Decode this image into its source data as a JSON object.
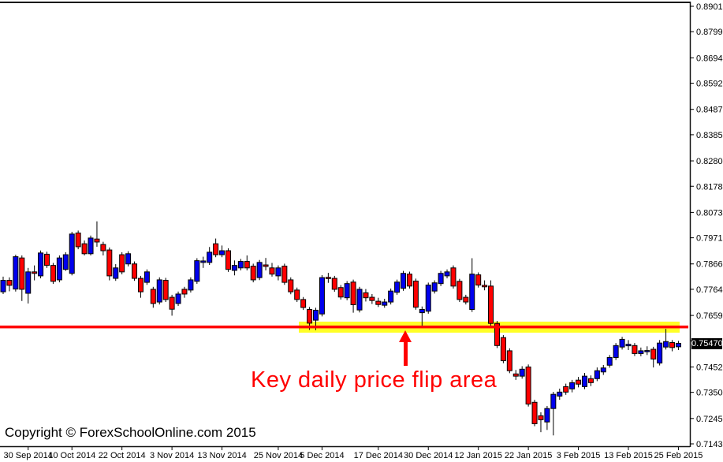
{
  "window": {
    "background": "#FFFFFF"
  },
  "copyright": "Copyright © ForexSchoolOnline.com 2015",
  "annotation": {
    "text": "Key daily price flip area",
    "color": "#FF0000"
  },
  "price_label": {
    "value": "0.75470",
    "bg": "#000000",
    "text_color": "#FFFFFF"
  },
  "key_level": {
    "price": 0.7612,
    "line_color": "#FF0000",
    "highlight_color": "#FFFF00",
    "label": "Key daily price flip area"
  },
  "chart_data": {
    "type": "candlestick",
    "timeframe": "daily",
    "ylim": [
      0.713,
      0.8917
    ],
    "y_ticks": [
      "0.89010",
      "0.87990",
      "0.86940",
      "0.85920",
      "0.84870",
      "0.83850",
      "0.82800",
      "0.81780",
      "0.80730",
      "0.79710",
      "0.78660",
      "0.77640",
      "0.76590",
      "0.75570",
      "0.74520",
      "0.73500",
      "0.72450",
      "0.71430"
    ],
    "x_ticks": [
      {
        "label": "30 Sep 2014",
        "i": 4
      },
      {
        "label": "10 Oct 2014",
        "i": 11
      },
      {
        "label": "22 Oct 2014",
        "i": 19
      },
      {
        "label": "3 Nov 2014",
        "i": 27
      },
      {
        "label": "13 Nov 2014",
        "i": 35
      },
      {
        "label": "25 Nov 2014",
        "i": 44
      },
      {
        "label": "5 Dec 2014",
        "i": 51
      },
      {
        "label": "17 Dec 2014",
        "i": 60
      },
      {
        "label": "30 Dec 2014",
        "i": 68
      },
      {
        "label": "12 Jan 2015",
        "i": 76
      },
      {
        "label": "22 Jan 2015",
        "i": 84
      },
      {
        "label": "3 Feb 2015",
        "i": 92
      },
      {
        "label": "13 Feb 2015",
        "i": 100
      },
      {
        "label": "25 Feb 2015",
        "i": 108
      }
    ],
    "bull_color": "#0000EE",
    "bear_color": "#FF0000",
    "wick_color": "#000000",
    "last_price": 0.7547,
    "candles": [
      [
        0.7754,
        0.7815,
        0.7745,
        0.78
      ],
      [
        0.78,
        0.7812,
        0.7756,
        0.778
      ],
      [
        0.7765,
        0.7903,
        0.7755,
        0.7895
      ],
      [
        0.789,
        0.79,
        0.7717,
        0.7764
      ],
      [
        0.7748,
        0.785,
        0.7707,
        0.7834
      ],
      [
        0.7834,
        0.786,
        0.78,
        0.7828
      ],
      [
        0.7818,
        0.792,
        0.7808,
        0.791
      ],
      [
        0.7905,
        0.7915,
        0.785,
        0.786
      ],
      [
        0.786,
        0.787,
        0.7786,
        0.7796
      ],
      [
        0.7802,
        0.79,
        0.7792,
        0.789
      ],
      [
        0.7844,
        0.7913,
        0.7838,
        0.7903
      ],
      [
        0.7828,
        0.7995,
        0.782,
        0.7986
      ],
      [
        0.799,
        0.8,
        0.7925,
        0.7935
      ],
      [
        0.7947,
        0.796,
        0.79,
        0.7907
      ],
      [
        0.7907,
        0.798,
        0.79,
        0.797
      ],
      [
        0.7966,
        0.8037,
        0.7935,
        0.7954
      ],
      [
        0.7944,
        0.7955,
        0.79,
        0.7919
      ],
      [
        0.7922,
        0.7932,
        0.78,
        0.7818
      ],
      [
        0.7808,
        0.7865,
        0.7798,
        0.785
      ],
      [
        0.7903,
        0.7913,
        0.7824,
        0.7834
      ],
      [
        0.7866,
        0.7917,
        0.7856,
        0.7907
      ],
      [
        0.7866,
        0.7876,
        0.7798,
        0.7808
      ],
      [
        0.7808,
        0.7818,
        0.773,
        0.7754
      ],
      [
        0.7792,
        0.7844,
        0.7782,
        0.7834
      ],
      [
        0.7764,
        0.7774,
        0.769,
        0.7707
      ],
      [
        0.7713,
        0.7812,
        0.7703,
        0.7802
      ],
      [
        0.78,
        0.781,
        0.7713,
        0.7723
      ],
      [
        0.7732,
        0.7742,
        0.7658,
        0.7684
      ],
      [
        0.7707,
        0.7755,
        0.7697,
        0.7745
      ],
      [
        0.7764,
        0.7774,
        0.773,
        0.7745
      ],
      [
        0.7761,
        0.7812,
        0.7751,
        0.7802
      ],
      [
        0.7796,
        0.7889,
        0.7786,
        0.7879
      ],
      [
        0.7872,
        0.7895,
        0.785,
        0.7878
      ],
      [
        0.7872,
        0.7934,
        0.7862,
        0.7913
      ],
      [
        0.7947,
        0.7968,
        0.7893,
        0.7903
      ],
      [
        0.7903,
        0.794,
        0.7893,
        0.7919
      ],
      [
        0.7919,
        0.7929,
        0.7834,
        0.7844
      ],
      [
        0.784,
        0.788,
        0.782,
        0.786
      ],
      [
        0.785,
        0.7886,
        0.784,
        0.7876
      ],
      [
        0.7876,
        0.79,
        0.784,
        0.785
      ],
      [
        0.7857,
        0.7867,
        0.7792,
        0.7802
      ],
      [
        0.7811,
        0.7882,
        0.7801,
        0.7872
      ],
      [
        0.7862,
        0.789,
        0.784,
        0.7856
      ],
      [
        0.785,
        0.787,
        0.7815,
        0.7825
      ],
      [
        0.7818,
        0.786,
        0.78,
        0.785
      ],
      [
        0.7857,
        0.7867,
        0.7782,
        0.7792
      ],
      [
        0.7802,
        0.7812,
        0.7744,
        0.7754
      ],
      [
        0.7761,
        0.7771,
        0.7713,
        0.7723
      ],
      [
        0.7723,
        0.7733,
        0.7681,
        0.7691
      ],
      [
        0.7683,
        0.7693,
        0.7601,
        0.7628
      ],
      [
        0.764,
        0.769,
        0.76,
        0.768
      ],
      [
        0.7665,
        0.7821,
        0.7655,
        0.7811
      ],
      [
        0.7812,
        0.783,
        0.779,
        0.7808
      ],
      [
        0.7808,
        0.7818,
        0.7754,
        0.7764
      ],
      [
        0.7771,
        0.7781,
        0.7723,
        0.7733
      ],
      [
        0.773,
        0.7797,
        0.772,
        0.7787
      ],
      [
        0.7793,
        0.7803,
        0.767,
        0.7702
      ],
      [
        0.7681,
        0.7774,
        0.7671,
        0.7764
      ],
      [
        0.775,
        0.7765,
        0.7715,
        0.773
      ],
      [
        0.7732,
        0.7745,
        0.7705,
        0.7719
      ],
      [
        0.7716,
        0.773,
        0.7693,
        0.7703
      ],
      [
        0.77,
        0.7726,
        0.769,
        0.7713
      ],
      [
        0.7713,
        0.7767,
        0.7703,
        0.7757
      ],
      [
        0.7752,
        0.7803,
        0.7742,
        0.7793
      ],
      [
        0.7768,
        0.7838,
        0.7758,
        0.7828
      ],
      [
        0.7825,
        0.7835,
        0.7767,
        0.7777
      ],
      [
        0.7797,
        0.7807,
        0.7682,
        0.7692
      ],
      [
        0.767,
        0.7695,
        0.7613,
        0.7683
      ],
      [
        0.7676,
        0.7791,
        0.7666,
        0.7781
      ],
      [
        0.7757,
        0.78,
        0.7747,
        0.779
      ],
      [
        0.7787,
        0.7838,
        0.7777,
        0.7828
      ],
      [
        0.7818,
        0.7844,
        0.7808,
        0.7834
      ],
      [
        0.785,
        0.786,
        0.7767,
        0.7777
      ],
      [
        0.7796,
        0.7806,
        0.7713,
        0.7723
      ],
      [
        0.7732,
        0.7742,
        0.7703,
        0.7713
      ],
      [
        0.7683,
        0.7889,
        0.7673,
        0.7825
      ],
      [
        0.7822,
        0.7832,
        0.7771,
        0.7781
      ],
      [
        0.778,
        0.78,
        0.776,
        0.7774
      ],
      [
        0.7777,
        0.78,
        0.7617,
        0.7627
      ],
      [
        0.7627,
        0.7637,
        0.7528,
        0.7538
      ],
      [
        0.757,
        0.758,
        0.7467,
        0.7477
      ],
      [
        0.7517,
        0.7527,
        0.7427,
        0.7437
      ],
      [
        0.7424,
        0.744,
        0.74,
        0.7415
      ],
      [
        0.7415,
        0.7455,
        0.7405,
        0.7443
      ],
      [
        0.7452,
        0.7462,
        0.7293,
        0.7303
      ],
      [
        0.731,
        0.732,
        0.7214,
        0.7224
      ],
      [
        0.7256,
        0.727,
        0.719,
        0.724
      ],
      [
        0.7231,
        0.7295,
        0.7199,
        0.7285
      ],
      [
        0.7285,
        0.7352,
        0.7177,
        0.7342
      ],
      [
        0.7335,
        0.7365,
        0.732,
        0.7351
      ],
      [
        0.7373,
        0.7385,
        0.734,
        0.7351
      ],
      [
        0.7364,
        0.74,
        0.735,
        0.7389
      ],
      [
        0.7399,
        0.7412,
        0.737,
        0.7383
      ],
      [
        0.7373,
        0.7428,
        0.7363,
        0.7415
      ],
      [
        0.7405,
        0.7418,
        0.7375,
        0.7389
      ],
      [
        0.7405,
        0.745,
        0.7395,
        0.7437
      ],
      [
        0.7432,
        0.746,
        0.742,
        0.7448
      ],
      [
        0.7459,
        0.75,
        0.7449,
        0.749
      ],
      [
        0.749,
        0.7548,
        0.748,
        0.7538
      ],
      [
        0.7532,
        0.7573,
        0.7522,
        0.7563
      ],
      [
        0.7537,
        0.756,
        0.752,
        0.7543
      ],
      [
        0.7538,
        0.7548,
        0.7496,
        0.7506
      ],
      [
        0.7506,
        0.753,
        0.7495,
        0.7517
      ],
      [
        0.7514,
        0.7535,
        0.75,
        0.7518
      ],
      [
        0.7523,
        0.7533,
        0.745,
        0.7484
      ],
      [
        0.7468,
        0.756,
        0.7458,
        0.7548
      ],
      [
        0.7532,
        0.7605,
        0.7522,
        0.7554
      ],
      [
        0.755,
        0.756,
        0.7515,
        0.753
      ],
      [
        0.7533,
        0.7557,
        0.752,
        0.7547
      ]
    ]
  }
}
